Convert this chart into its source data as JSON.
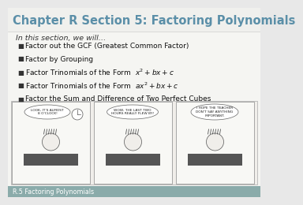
{
  "title": "Chapter R Section 5: Factoring Polynomials",
  "title_color": "#5b8fa8",
  "subtitle": "In this section, we will…",
  "subtitle_color": "#333333",
  "bullets": [
    "Factor out the GCF (Greatest Common Factor)",
    "Factor by Grouping",
    "Factor Trinomials of the Form  $x^2 +bx+c$",
    "Factor Trinomials of the Form  $ax^2 +bx+c$",
    "Factor the Sum and Difference of Two Perfect Cubes"
  ],
  "bullet_color": "#111111",
  "background_color": "#e8e8e8",
  "main_bg": "#f5f5f2",
  "footer_text": "R.5 Factoring Polynomials",
  "footer_bg": "#8aabaa",
  "footer_text_color": "#ffffff",
  "bullet_marker_color": "#333333",
  "title_fontsize": 10.5,
  "subtitle_fontsize": 6.8,
  "bullet_fontsize": 6.5,
  "footer_fontsize": 5.8
}
